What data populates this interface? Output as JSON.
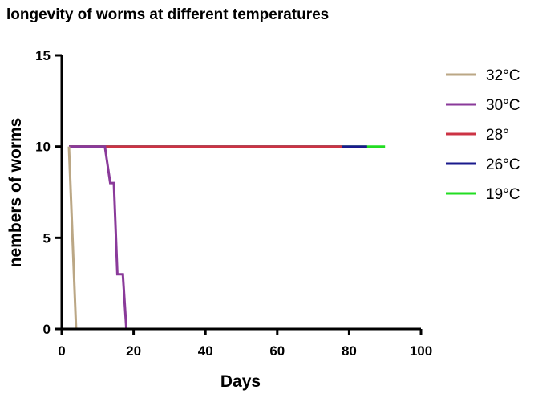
{
  "chart_data": {
    "type": "line",
    "title": "longevity of worms at different temperatures",
    "xlabel": "Days",
    "ylabel": "nembers of worms",
    "xlim": [
      0,
      100
    ],
    "ylim": [
      0,
      15
    ],
    "xticks": [
      0,
      20,
      40,
      60,
      80,
      100
    ],
    "yticks": [
      0,
      5,
      10,
      15
    ],
    "grid": false,
    "legend_position": "right",
    "series": [
      {
        "name": "19°C",
        "color": "#22dd22",
        "points": [
          [
            2,
            10
          ],
          [
            90,
            10
          ]
        ]
      },
      {
        "name": "26°C",
        "color": "#1a1a8c",
        "points": [
          [
            2,
            10
          ],
          [
            85,
            10
          ]
        ]
      },
      {
        "name": "28°",
        "color": "#cc3344",
        "points": [
          [
            2,
            10
          ],
          [
            78,
            10
          ]
        ]
      },
      {
        "name": "30°C",
        "color": "#8a3a9a",
        "points": [
          [
            2,
            10
          ],
          [
            12,
            10
          ],
          [
            13.5,
            8
          ],
          [
            14.5,
            8
          ],
          [
            15.5,
            3
          ],
          [
            17,
            3
          ],
          [
            18,
            0
          ]
        ]
      },
      {
        "name": "32°C",
        "color": "#bba785",
        "points": [
          [
            2,
            10
          ],
          [
            4,
            0
          ]
        ]
      }
    ],
    "legend_order": [
      "32°C",
      "30°C",
      "28°",
      "26°C",
      "19°C"
    ]
  }
}
